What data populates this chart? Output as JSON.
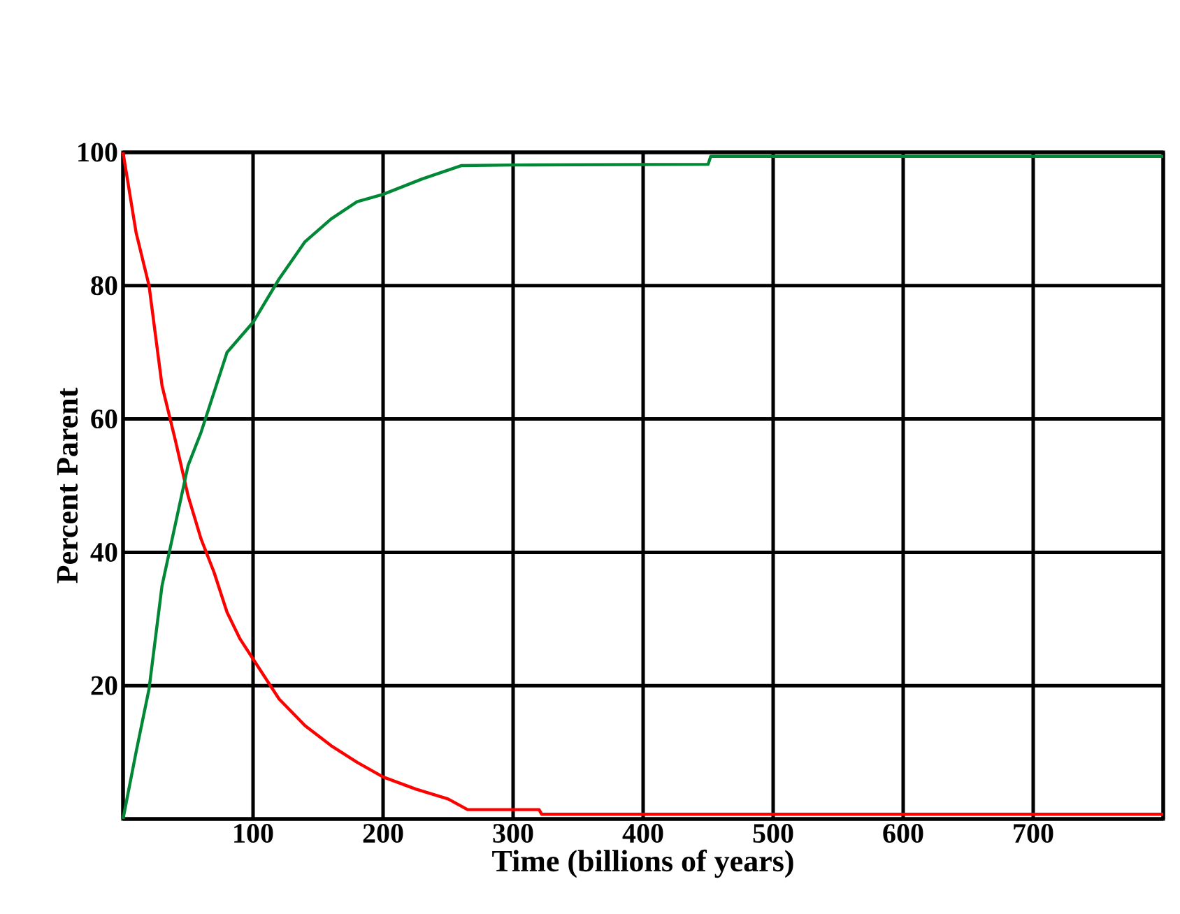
{
  "chart_data": {
    "type": "line",
    "xlabel": "Time (billions of years)",
    "ylabel": "Percent  Parent",
    "xlim": [
      0,
      800
    ],
    "ylim": [
      0,
      100
    ],
    "xticks": [
      {
        "value": 0,
        "label": null
      },
      100,
      200,
      300,
      400,
      500,
      600,
      700,
      {
        "value": 800,
        "label": null
      }
    ],
    "yticks": [
      {
        "value": 0,
        "label": null
      },
      20,
      40,
      60,
      80,
      100
    ],
    "grid": true,
    "marker": "none",
    "line_style": "solid",
    "series": [
      {
        "color": "#ff0000",
        "x": [
          0,
          10,
          20,
          30,
          40,
          50,
          60,
          70,
          80,
          90,
          100,
          120,
          140,
          160,
          180,
          200,
          225,
          250,
          265,
          320,
          322,
          800
        ],
        "values": [
          100,
          88,
          80,
          65,
          57,
          48.5,
          42,
          37,
          31,
          27,
          24,
          18,
          14,
          11,
          8.5,
          6.3,
          4.5,
          3,
          1.4,
          1.4,
          0.7,
          0.7
        ]
      },
      {
        "color": "#008837",
        "x": [
          0,
          10,
          20,
          30,
          40,
          50,
          60,
          70,
          80,
          100,
          120,
          140,
          160,
          180,
          200,
          230,
          260,
          300,
          450,
          452,
          800
        ],
        "values": [
          0,
          10,
          19.5,
          35,
          44,
          53,
          58,
          64,
          70,
          74.5,
          81,
          86.6,
          90,
          92.6,
          93.7,
          96,
          98,
          98.1,
          98.2,
          99.4,
          99.4
        ]
      }
    ]
  }
}
